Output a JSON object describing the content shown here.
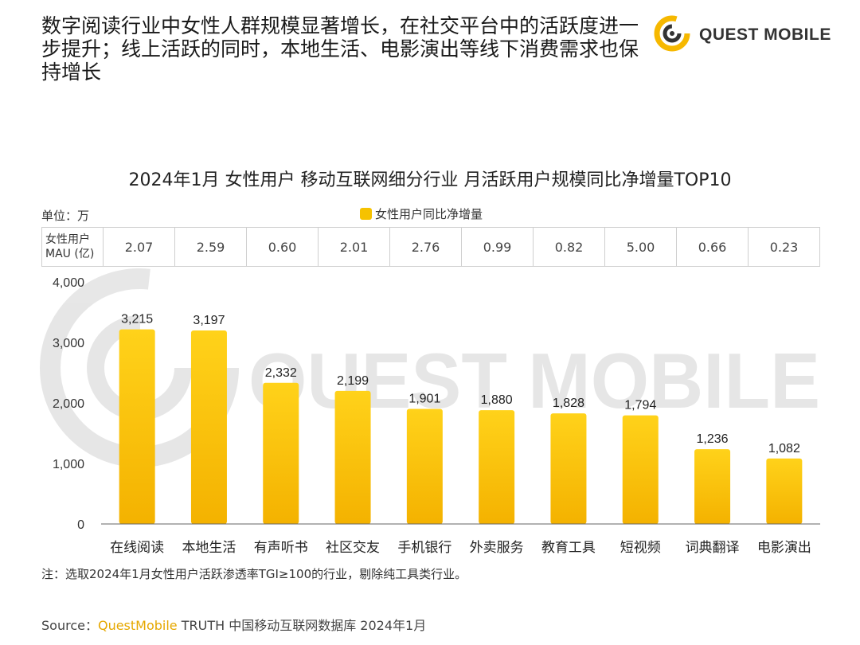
{
  "headline": "数字阅读行业中女性人群规模显著增长，在社交平台中的活跃度进一步提升；线上活跃的同时，本地生活、电影演出等线下消费需求也保持增长",
  "logo": {
    "text": "QUEST MOBILE",
    "watermark": "QUEST MOBILE",
    "accent": "#f6b800"
  },
  "unit_label": "单位：万",
  "mau_header": {
    "line1": "女性用户",
    "line2": "MAU (亿)"
  },
  "mau_values": [
    "2.07",
    "2.59",
    "0.60",
    "2.01",
    "2.76",
    "0.99",
    "0.82",
    "5.00",
    "0.66",
    "0.23"
  ],
  "footnote": "注：选取2024年1月女性用户活跃渗透率TGI≥100的行业，剔除纯工具类行业。",
  "source": {
    "prefix": "Source：",
    "brand": "QuestMobile",
    "rest": " TRUTH 中国移动互联网数据库 2024年1月"
  },
  "colors": {
    "bar_top": "#ffd21a",
    "bar_bottom": "#f4b200",
    "brand": "#e6a800"
  },
  "chart_data": {
    "type": "bar",
    "title": "2024年1月 女性用户 移动互联网细分行业 月活跃用户规模同比净增量TOP10",
    "categories": [
      "在线阅读",
      "本地生活",
      "有声听书",
      "社区交友",
      "手机银行",
      "外卖服务",
      "教育工具",
      "短视频",
      "词典翻译",
      "电影演出"
    ],
    "series": [
      {
        "name": "女性用户同比净增量",
        "values": [
          3215,
          3197,
          2332,
          2199,
          1901,
          1880,
          1828,
          1794,
          1236,
          1082
        ]
      }
    ],
    "data_labels": [
      "3,215",
      "3,197",
      "2,332",
      "2,199",
      "1,901",
      "1,880",
      "1,828",
      "1,794",
      "1,236",
      "1,082"
    ],
    "yticks": [
      "0",
      "1,000",
      "2,000",
      "3,000",
      "4,000"
    ],
    "ylim": [
      0,
      4000
    ],
    "grid": false,
    "legend": "top-center"
  }
}
